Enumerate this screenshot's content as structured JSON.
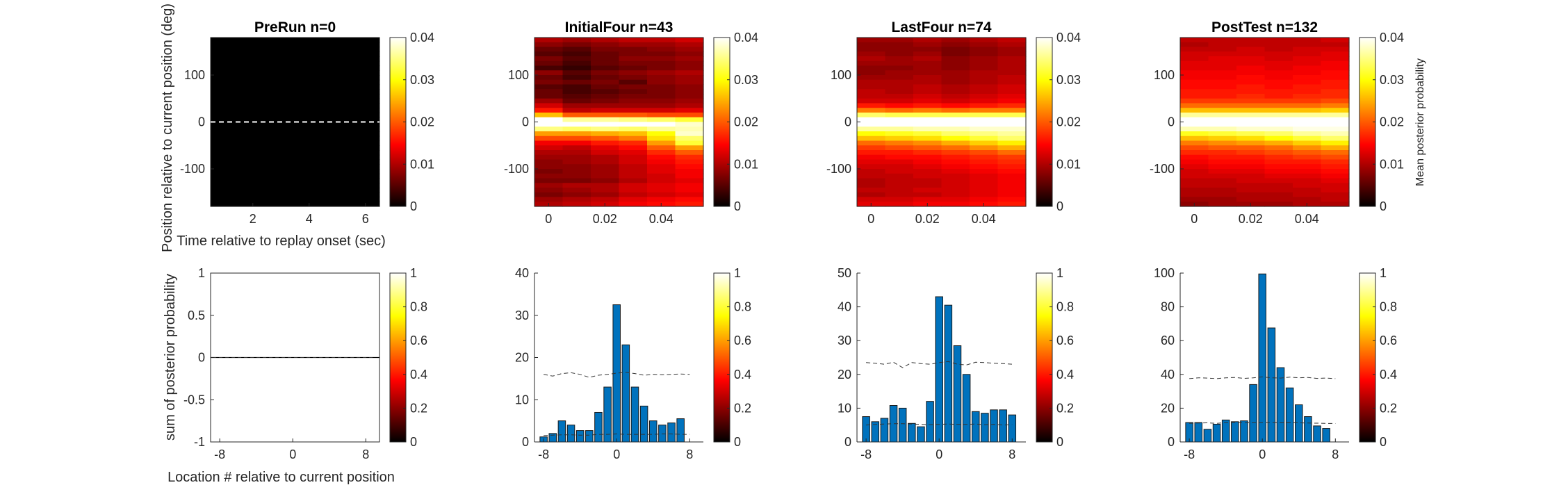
{
  "figure": {
    "top_ylabel": "Position relative to current position (deg)",
    "top_xlabel": "Time relative to replay onset (sec)",
    "bottom_ylabel": "sum of posterior probability",
    "bottom_xlabel": "Location # relative to current position",
    "colorbar_label": "Mean posterior probability",
    "colormap": "hot"
  },
  "chart_data": [
    {
      "type": "heatmap",
      "title": "PreRun n=0",
      "x_ticks": [
        2,
        4,
        6
      ],
      "x_range": [
        0.5,
        6.5
      ],
      "y_ticks": [
        100,
        0,
        -100
      ],
      "y_range": [
        -180,
        180
      ],
      "clim": [
        0,
        0.04
      ],
      "colorbar_ticks": [
        0,
        0.01,
        0.02,
        0.03,
        0.04
      ],
      "dashed_line_y": 0,
      "columns": 1,
      "rows": 36,
      "values": [
        [
          0,
          0,
          0,
          0,
          0,
          0,
          0,
          0,
          0,
          0,
          0,
          0,
          0,
          0,
          0,
          0,
          0,
          0,
          0,
          0,
          0,
          0,
          0,
          0,
          0,
          0,
          0,
          0,
          0,
          0,
          0,
          0,
          0,
          0,
          0,
          0
        ]
      ]
    },
    {
      "type": "heatmap",
      "title": "InitialFour n=43",
      "x_ticks": [
        0,
        0.02,
        0.04
      ],
      "x_range": [
        -0.005,
        0.055
      ],
      "y_ticks": [
        100,
        0,
        -100
      ],
      "y_range": [
        -180,
        180
      ],
      "clim": [
        0,
        0.04
      ],
      "colorbar_ticks": [
        0,
        0.01,
        0.02,
        0.03,
        0.04
      ],
      "columns": 6,
      "rows": 36,
      "values": [
        [
          0.01,
          0.008,
          0.006,
          0.005,
          0.007,
          0.006,
          0.004,
          0.008,
          0.006,
          0.007,
          0.005,
          0.006,
          0.006,
          0.009,
          0.012,
          0.016,
          0.026,
          0.04,
          0.04,
          0.035,
          0.024,
          0.019,
          0.014,
          0.012,
          0.01,
          0.009,
          0.008,
          0.008,
          0.007,
          0.008,
          0.007,
          0.009,
          0.008,
          0.007,
          0.009,
          0.01
        ],
        [
          0.009,
          0.007,
          0.005,
          0.004,
          0.005,
          0.004,
          0.003,
          0.005,
          0.004,
          0.006,
          0.004,
          0.004,
          0.005,
          0.006,
          0.009,
          0.011,
          0.02,
          0.036,
          0.04,
          0.034,
          0.024,
          0.019,
          0.014,
          0.011,
          0.01,
          0.009,
          0.009,
          0.008,
          0.008,
          0.008,
          0.007,
          0.01,
          0.009,
          0.008,
          0.01,
          0.011
        ],
        [
          0.01,
          0.008,
          0.007,
          0.006,
          0.006,
          0.006,
          0.005,
          0.007,
          0.006,
          0.007,
          0.006,
          0.005,
          0.006,
          0.007,
          0.009,
          0.012,
          0.02,
          0.036,
          0.04,
          0.035,
          0.025,
          0.02,
          0.016,
          0.013,
          0.012,
          0.01,
          0.01,
          0.009,
          0.009,
          0.009,
          0.008,
          0.01,
          0.01,
          0.009,
          0.011,
          0.012
        ],
        [
          0.011,
          0.009,
          0.007,
          0.007,
          0.008,
          0.007,
          0.006,
          0.008,
          0.007,
          0.005,
          0.007,
          0.006,
          0.007,
          0.008,
          0.009,
          0.012,
          0.02,
          0.035,
          0.04,
          0.034,
          0.026,
          0.022,
          0.017,
          0.015,
          0.013,
          0.012,
          0.012,
          0.011,
          0.011,
          0.011,
          0.01,
          0.012,
          0.012,
          0.011,
          0.013,
          0.014
        ],
        [
          0.011,
          0.009,
          0.008,
          0.007,
          0.008,
          0.007,
          0.007,
          0.009,
          0.008,
          0.008,
          0.007,
          0.007,
          0.007,
          0.008,
          0.009,
          0.012,
          0.019,
          0.034,
          0.04,
          0.036,
          0.03,
          0.028,
          0.024,
          0.02,
          0.017,
          0.015,
          0.014,
          0.013,
          0.013,
          0.012,
          0.012,
          0.013,
          0.013,
          0.012,
          0.014,
          0.015
        ],
        [
          0.012,
          0.01,
          0.009,
          0.008,
          0.009,
          0.008,
          0.008,
          0.01,
          0.009,
          0.009,
          0.008,
          0.008,
          0.008,
          0.009,
          0.01,
          0.013,
          0.019,
          0.032,
          0.038,
          0.037,
          0.038,
          0.034,
          0.032,
          0.024,
          0.02,
          0.017,
          0.016,
          0.015,
          0.014,
          0.014,
          0.013,
          0.014,
          0.014,
          0.013,
          0.015,
          0.016
        ]
      ]
    },
    {
      "type": "heatmap",
      "title": "LastFour n=74",
      "x_ticks": [
        0,
        0.02,
        0.04
      ],
      "x_range": [
        -0.005,
        0.055
      ],
      "y_ticks": [
        100,
        0,
        -100
      ],
      "y_range": [
        -180,
        180
      ],
      "clim": [
        0,
        0.04
      ],
      "colorbar_ticks": [
        0,
        0.01,
        0.02,
        0.03,
        0.04
      ],
      "columns": 6,
      "rows": 36,
      "values": [
        [
          0.009,
          0.008,
          0.008,
          0.009,
          0.01,
          0.009,
          0.008,
          0.008,
          0.009,
          0.01,
          0.01,
          0.011,
          0.011,
          0.012,
          0.016,
          0.022,
          0.034,
          0.04,
          0.04,
          0.036,
          0.03,
          0.026,
          0.021,
          0.018,
          0.016,
          0.014,
          0.013,
          0.012,
          0.011,
          0.011,
          0.01,
          0.01,
          0.011,
          0.01,
          0.012,
          0.013
        ],
        [
          0.009,
          0.008,
          0.008,
          0.008,
          0.009,
          0.009,
          0.008,
          0.009,
          0.009,
          0.01,
          0.01,
          0.01,
          0.011,
          0.012,
          0.015,
          0.021,
          0.033,
          0.04,
          0.04,
          0.036,
          0.031,
          0.027,
          0.022,
          0.019,
          0.016,
          0.015,
          0.013,
          0.012,
          0.012,
          0.011,
          0.011,
          0.011,
          0.011,
          0.011,
          0.012,
          0.013
        ],
        [
          0.01,
          0.009,
          0.008,
          0.009,
          0.01,
          0.009,
          0.009,
          0.009,
          0.01,
          0.01,
          0.011,
          0.011,
          0.012,
          0.013,
          0.016,
          0.022,
          0.033,
          0.04,
          0.04,
          0.037,
          0.032,
          0.028,
          0.023,
          0.02,
          0.017,
          0.015,
          0.014,
          0.013,
          0.012,
          0.012,
          0.011,
          0.011,
          0.012,
          0.011,
          0.013,
          0.014
        ],
        [
          0.009,
          0.008,
          0.007,
          0.007,
          0.008,
          0.008,
          0.008,
          0.009,
          0.009,
          0.009,
          0.01,
          0.01,
          0.011,
          0.012,
          0.015,
          0.021,
          0.033,
          0.04,
          0.04,
          0.037,
          0.034,
          0.03,
          0.025,
          0.021,
          0.018,
          0.016,
          0.015,
          0.014,
          0.013,
          0.012,
          0.012,
          0.012,
          0.012,
          0.012,
          0.013,
          0.014
        ],
        [
          0.01,
          0.009,
          0.008,
          0.008,
          0.009,
          0.009,
          0.009,
          0.01,
          0.01,
          0.01,
          0.011,
          0.011,
          0.012,
          0.013,
          0.016,
          0.022,
          0.033,
          0.04,
          0.04,
          0.038,
          0.035,
          0.032,
          0.027,
          0.023,
          0.019,
          0.017,
          0.016,
          0.015,
          0.014,
          0.013,
          0.013,
          0.013,
          0.013,
          0.013,
          0.014,
          0.015
        ],
        [
          0.011,
          0.01,
          0.009,
          0.009,
          0.01,
          0.01,
          0.01,
          0.01,
          0.011,
          0.011,
          0.012,
          0.012,
          0.013,
          0.014,
          0.017,
          0.022,
          0.033,
          0.04,
          0.04,
          0.038,
          0.036,
          0.034,
          0.029,
          0.025,
          0.021,
          0.018,
          0.017,
          0.016,
          0.015,
          0.014,
          0.014,
          0.014,
          0.014,
          0.014,
          0.015,
          0.016
        ]
      ]
    },
    {
      "type": "heatmap",
      "title": "PostTest n=132",
      "x_ticks": [
        0,
        0.02,
        0.04
      ],
      "x_range": [
        -0.005,
        0.055
      ],
      "y_ticks": [
        100,
        0,
        -100
      ],
      "y_range": [
        -180,
        180
      ],
      "clim": [
        0,
        0.04
      ],
      "colorbar_ticks": [
        0,
        0.01,
        0.02,
        0.03,
        0.04
      ],
      "columns": 6,
      "rows": 36,
      "values": [
        [
          0.011,
          0.01,
          0.011,
          0.012,
          0.012,
          0.013,
          0.013,
          0.014,
          0.014,
          0.015,
          0.015,
          0.016,
          0.016,
          0.018,
          0.021,
          0.026,
          0.036,
          0.04,
          0.04,
          0.037,
          0.031,
          0.026,
          0.022,
          0.019,
          0.017,
          0.015,
          0.014,
          0.013,
          0.012,
          0.012,
          0.011,
          0.011,
          0.01,
          0.01,
          0.009,
          0.008
        ],
        [
          0.011,
          0.011,
          0.011,
          0.012,
          0.013,
          0.013,
          0.013,
          0.014,
          0.014,
          0.015,
          0.015,
          0.016,
          0.016,
          0.018,
          0.021,
          0.026,
          0.036,
          0.04,
          0.04,
          0.037,
          0.032,
          0.027,
          0.023,
          0.02,
          0.017,
          0.016,
          0.015,
          0.014,
          0.013,
          0.012,
          0.011,
          0.011,
          0.01,
          0.01,
          0.009,
          0.009
        ],
        [
          0.011,
          0.011,
          0.012,
          0.012,
          0.013,
          0.013,
          0.014,
          0.014,
          0.015,
          0.015,
          0.016,
          0.016,
          0.017,
          0.018,
          0.021,
          0.026,
          0.036,
          0.04,
          0.04,
          0.038,
          0.033,
          0.028,
          0.024,
          0.02,
          0.018,
          0.016,
          0.015,
          0.014,
          0.013,
          0.012,
          0.012,
          0.011,
          0.011,
          0.01,
          0.01,
          0.009
        ],
        [
          0.011,
          0.011,
          0.011,
          0.012,
          0.012,
          0.013,
          0.013,
          0.014,
          0.014,
          0.015,
          0.015,
          0.016,
          0.016,
          0.018,
          0.021,
          0.026,
          0.036,
          0.04,
          0.04,
          0.038,
          0.034,
          0.03,
          0.025,
          0.021,
          0.019,
          0.017,
          0.016,
          0.015,
          0.014,
          0.013,
          0.012,
          0.011,
          0.011,
          0.01,
          0.01,
          0.009
        ],
        [
          0.011,
          0.011,
          0.012,
          0.012,
          0.013,
          0.013,
          0.014,
          0.014,
          0.015,
          0.015,
          0.016,
          0.016,
          0.017,
          0.018,
          0.021,
          0.026,
          0.036,
          0.04,
          0.04,
          0.039,
          0.036,
          0.032,
          0.027,
          0.023,
          0.02,
          0.018,
          0.016,
          0.015,
          0.014,
          0.013,
          0.012,
          0.012,
          0.011,
          0.011,
          0.01,
          0.01
        ],
        [
          0.012,
          0.011,
          0.012,
          0.013,
          0.013,
          0.014,
          0.014,
          0.015,
          0.015,
          0.016,
          0.016,
          0.017,
          0.017,
          0.019,
          0.022,
          0.027,
          0.036,
          0.04,
          0.04,
          0.039,
          0.037,
          0.034,
          0.029,
          0.025,
          0.021,
          0.019,
          0.017,
          0.016,
          0.015,
          0.014,
          0.013,
          0.012,
          0.012,
          0.011,
          0.011,
          0.01
        ]
      ]
    },
    {
      "type": "bar",
      "title": "",
      "x": [
        -8,
        -7,
        -6,
        -5,
        -4,
        -3,
        -2,
        -1,
        0,
        1,
        2,
        3,
        4,
        5,
        6,
        7,
        8
      ],
      "values": [
        0,
        0,
        0,
        0,
        0,
        0,
        0,
        0,
        0,
        0,
        0,
        0,
        0,
        0,
        0,
        0,
        0
      ],
      "x_ticks": [
        -8,
        0,
        8
      ],
      "x_range": [
        -9,
        9.5
      ],
      "y_ticks": [
        1,
        0.5,
        0,
        -0.5,
        -1
      ],
      "y_range": [
        -1,
        1
      ],
      "dashed_upper": [
        0,
        0,
        0,
        0,
        0,
        0,
        0,
        0,
        0,
        0,
        0,
        0,
        0,
        0,
        0,
        0,
        0
      ],
      "dashed_lower": [
        0,
        0,
        0,
        0,
        0,
        0,
        0,
        0,
        0,
        0,
        0,
        0,
        0,
        0,
        0,
        0,
        0
      ],
      "colorbar_ticks": [
        0,
        0.2,
        0.4,
        0.6,
        0.8,
        1
      ],
      "clim": [
        0,
        1
      ]
    },
    {
      "type": "bar",
      "title": "",
      "x": [
        -8,
        -7,
        -6,
        -5,
        -4,
        -3,
        -2,
        -1,
        0,
        1,
        2,
        3,
        4,
        5,
        6,
        7,
        8
      ],
      "values": [
        1.2,
        2.0,
        5.0,
        4.0,
        2.7,
        2.7,
        7.0,
        13.0,
        32.5,
        23.0,
        13.0,
        8.5,
        5.0,
        4.0,
        4.5,
        5.5,
        0
      ],
      "x_ticks": [
        -8,
        0,
        8
      ],
      "x_range": [
        -9,
        9.5
      ],
      "y_ticks": [
        40,
        30,
        20,
        10,
        0
      ],
      "y_range": [
        0,
        40
      ],
      "dashed_upper": [
        16.0,
        15.6,
        16.2,
        16.4,
        16.0,
        15.3,
        15.8,
        16.0,
        16.3,
        16.5,
        16.2,
        15.8,
        16.0,
        15.9,
        16.0,
        16.1,
        16.0
      ],
      "dashed_lower": [
        1.5,
        1.6,
        1.7,
        1.7,
        1.6,
        1.6,
        1.8,
        1.8,
        1.9,
        1.8,
        1.8,
        1.8,
        1.8,
        1.9,
        1.9,
        1.8,
        1.8
      ],
      "colorbar_ticks": [
        0,
        0.2,
        0.4,
        0.6,
        0.8,
        1
      ],
      "clim": [
        0,
        1
      ]
    },
    {
      "type": "bar",
      "title": "",
      "x": [
        -8,
        -7,
        -6,
        -5,
        -4,
        -3,
        -2,
        -1,
        0,
        1,
        2,
        3,
        4,
        5,
        6,
        7,
        8
      ],
      "values": [
        7.5,
        6.0,
        7.0,
        10.8,
        10.0,
        5.5,
        4.5,
        12.0,
        43.0,
        40.5,
        28.5,
        20.0,
        9.0,
        8.5,
        9.5,
        9.5,
        8.0
      ],
      "x_ticks": [
        -8,
        0,
        8
      ],
      "x_range": [
        -9,
        9.5
      ],
      "y_ticks": [
        50,
        40,
        30,
        20,
        10,
        0
      ],
      "y_range": [
        0,
        50
      ],
      "dashed_upper": [
        23.5,
        23.3,
        23.0,
        23.6,
        22.0,
        23.5,
        23.2,
        23.0,
        23.5,
        23.8,
        23.0,
        22.8,
        23.6,
        23.5,
        23.3,
        23.2,
        23.0
      ],
      "dashed_lower": [
        5.0,
        5.2,
        5.3,
        5.4,
        5.4,
        5.3,
        5.2,
        5.1,
        5.2,
        5.3,
        5.2,
        5.2,
        5.3,
        5.1,
        5.2,
        5.0,
        5.1
      ],
      "colorbar_ticks": [
        0,
        0.2,
        0.4,
        0.6,
        0.8,
        1
      ],
      "clim": [
        0,
        1
      ]
    },
    {
      "type": "bar",
      "title": "",
      "x": [
        -8,
        -7,
        -6,
        -5,
        -4,
        -3,
        -2,
        -1,
        0,
        1,
        2,
        3,
        4,
        5,
        6,
        7,
        8
      ],
      "values": [
        11.5,
        11.5,
        7.5,
        10.5,
        13.0,
        12.0,
        12.5,
        34.0,
        99.5,
        67.5,
        44.0,
        32.0,
        22.0,
        15.0,
        9.5,
        8.0,
        0
      ],
      "x_ticks": [
        -8,
        0,
        8
      ],
      "x_range": [
        -9,
        9.5
      ],
      "y_ticks": [
        100,
        80,
        60,
        40,
        20,
        0
      ],
      "y_range": [
        0,
        100
      ],
      "dashed_upper": [
        37.5,
        38.0,
        37.8,
        37.5,
        38.0,
        38.2,
        37.6,
        38.0,
        38.5,
        38.0,
        37.8,
        38.4,
        38.0,
        38.2,
        37.6,
        37.8,
        37.5
      ],
      "dashed_lower": [
        11.0,
        11.2,
        11.3,
        11.0,
        11.4,
        11.5,
        11.4,
        11.3,
        11.4,
        11.5,
        11.3,
        11.4,
        11.3,
        11.2,
        11.1,
        11.0,
        10.9
      ],
      "colorbar_ticks": [
        0,
        0.2,
        0.4,
        0.6,
        0.8,
        1
      ],
      "clim": [
        0,
        1
      ]
    }
  ]
}
